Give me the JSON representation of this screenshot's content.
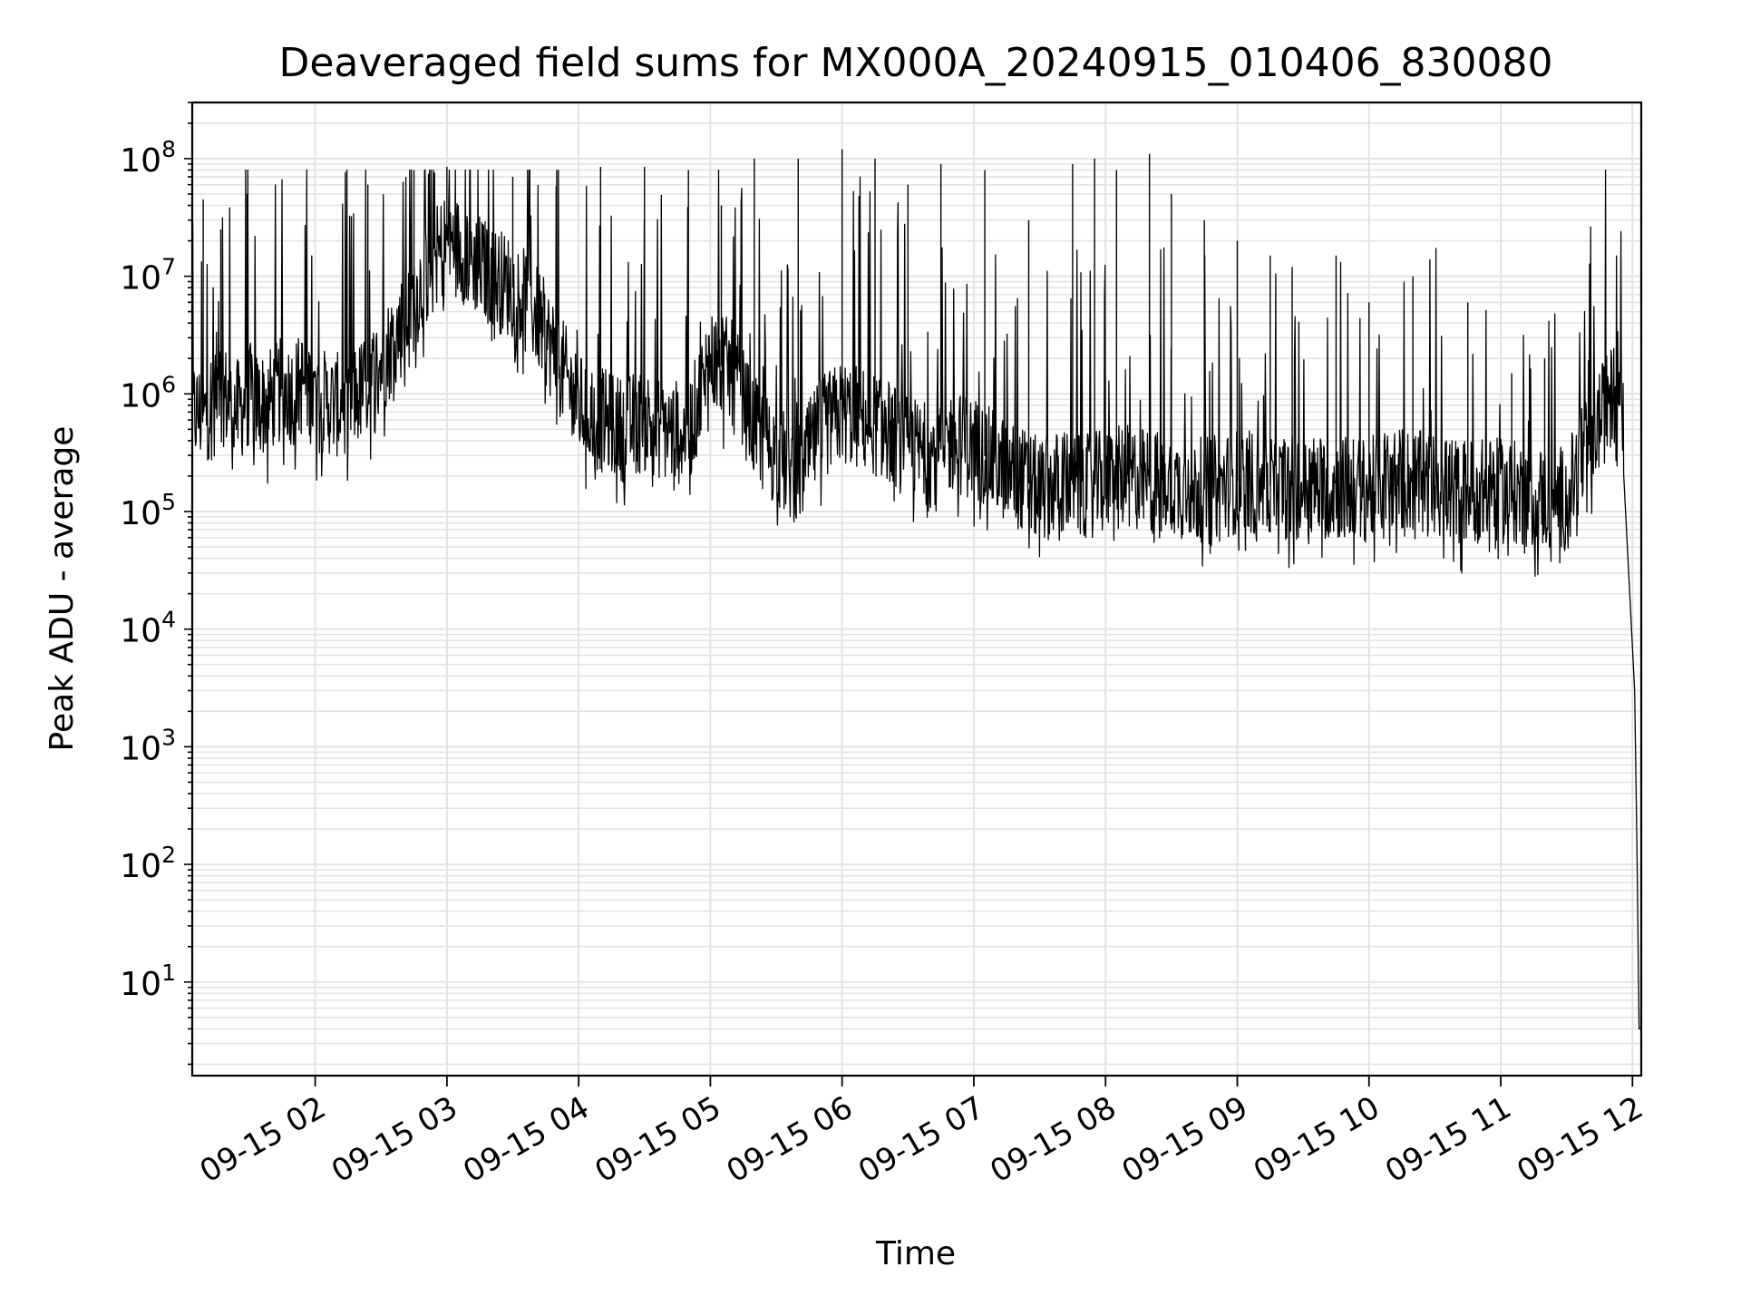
{
  "chart_data": {
    "type": "line",
    "title": "Deaveraged field sums for MX000A_20240915_010406_830080",
    "xlabel": "Time",
    "ylabel": "Peak ADU - average",
    "yscale": "log",
    "grid": true,
    "xlim": [
      "09-15 01:04",
      "09-15 12:04"
    ],
    "ylim": [
      1.6,
      300000000
    ],
    "x_ticks": [
      "09-15 02",
      "09-15 03",
      "09-15 04",
      "09-15 05",
      "09-15 06",
      "09-15 07",
      "09-15 08",
      "09-15 09",
      "09-15 10",
      "09-15 11",
      "09-15 12"
    ],
    "y_ticks": [
      {
        "value": 10,
        "base": "10",
        "exp": "1"
      },
      {
        "value": 100,
        "base": "10",
        "exp": "2"
      },
      {
        "value": 1000,
        "base": "10",
        "exp": "3"
      },
      {
        "value": 10000,
        "base": "10",
        "exp": "4"
      },
      {
        "value": 100000,
        "base": "10",
        "exp": "5"
      },
      {
        "value": 1000000,
        "base": "10",
        "exp": "6"
      },
      {
        "value": 10000000,
        "base": "10",
        "exp": "7"
      },
      {
        "value": 100000000,
        "base": "10",
        "exp": "8"
      }
    ],
    "line_color": "#000000",
    "series": [
      {
        "x": [
          "09-15 01:04",
          "09-15 01:10",
          "09-15 01:15",
          "09-15 01:20",
          "09-15 01:25",
          "09-15 01:30",
          "09-15 01:35",
          "09-15 01:40",
          "09-15 01:45",
          "09-15 01:50",
          "09-15 01:55",
          "09-15 02:00",
          "09-15 02:10",
          "09-15 02:20",
          "09-15 02:30",
          "09-15 02:40",
          "09-15 02:50",
          "09-15 03:00",
          "09-15 03:10",
          "09-15 03:20",
          "09-15 03:30",
          "09-15 03:40",
          "09-15 03:50",
          "09-15 04:00",
          "09-15 04:10",
          "09-15 04:20",
          "09-15 04:30",
          "09-15 04:40",
          "09-15 04:50",
          "09-15 05:00",
          "09-15 05:10",
          "09-15 05:20",
          "09-15 05:30",
          "09-15 05:40",
          "09-15 05:50",
          "09-15 06:00",
          "09-15 06:10",
          "09-15 06:20",
          "09-15 06:30",
          "09-15 06:40",
          "09-15 06:50",
          "09-15 07:00",
          "09-15 07:10",
          "09-15 07:20",
          "09-15 07:30",
          "09-15 07:40",
          "09-15 07:50",
          "09-15 08:00",
          "09-15 08:10",
          "09-15 08:20",
          "09-15 08:30",
          "09-15 08:40",
          "09-15 08:50",
          "09-15 09:00",
          "09-15 09:10",
          "09-15 09:20",
          "09-15 09:30",
          "09-15 09:40",
          "09-15 09:50",
          "09-15 10:00",
          "09-15 10:10",
          "09-15 10:20",
          "09-15 10:30",
          "09-15 10:40",
          "09-15 10:50",
          "09-15 11:00",
          "09-15 11:10",
          "09-15 11:20",
          "09-15 11:30",
          "09-15 11:40",
          "09-15 11:50",
          "09-15 11:55",
          "09-15 12:00",
          "09-15 12:01",
          "09-15 12:02",
          "09-15 12:03",
          "09-15 12:04"
        ],
        "y": [
          700000,
          650000,
          1200000,
          900000,
          700000,
          1000000,
          800000,
          900000,
          1100000,
          1000000,
          1300000,
          900000,
          800000,
          1000000,
          1800000,
          4000000,
          10000000,
          20000000,
          15000000,
          10000000,
          8000000,
          5000000,
          2000000,
          800000,
          600000,
          500000,
          600000,
          500000,
          450000,
          2000000,
          1500000,
          500000,
          300000,
          200000,
          500000,
          700000,
          600000,
          500000,
          350000,
          300000,
          400000,
          350000,
          250000,
          200000,
          150000,
          180000,
          160000,
          180000,
          200000,
          180000,
          170000,
          150000,
          160000,
          180000,
          170000,
          160000,
          170000,
          160000,
          160000,
          150000,
          200000,
          180000,
          160000,
          150000,
          150000,
          150000,
          140000,
          130000,
          130000,
          400000,
          900000,
          1500000,
          7000,
          3000,
          150,
          4,
          4
        ],
        "spikes": {
          "x": [
            "09-15 01:09",
            "09-15 01:17",
            "09-15 01:29",
            "09-15 01:45",
            "09-15 02:24",
            "09-15 02:45",
            "09-15 03:00",
            "09-15 03:30",
            "09-15 03:50",
            "09-15 04:10",
            "09-15 04:30",
            "09-15 04:50",
            "09-15 05:05",
            "09-15 05:20",
            "09-15 05:40",
            "09-15 06:00",
            "09-15 06:15",
            "09-15 06:30",
            "09-15 06:45",
            "09-15 07:05",
            "09-15 07:25",
            "09-15 07:45",
            "09-15 07:55",
            "09-15 08:05",
            "09-15 08:20",
            "09-15 08:30",
            "09-15 08:45",
            "09-15 09:00",
            "09-15 09:15",
            "09-15 09:25",
            "09-15 09:45",
            "09-15 10:00",
            "09-15 10:20",
            "09-15 10:45",
            "09-15 11:05",
            "09-15 11:20"
          ],
          "y": [
            45000000,
            25000000,
            50000000,
            8000000,
            60000000,
            80000000,
            85000000,
            70000000,
            80000000,
            85000000,
            85000000,
            80000000,
            40000000,
            100000000,
            100000000,
            120000000,
            100000000,
            60000000,
            90000000,
            80000000,
            30000000,
            90000000,
            100000000,
            80000000,
            110000000,
            50000000,
            30000000,
            20000000,
            15000000,
            12000000,
            15000000,
            6000000,
            10000000,
            6000000,
            1500000,
            2000000
          ]
        }
      }
    ]
  }
}
